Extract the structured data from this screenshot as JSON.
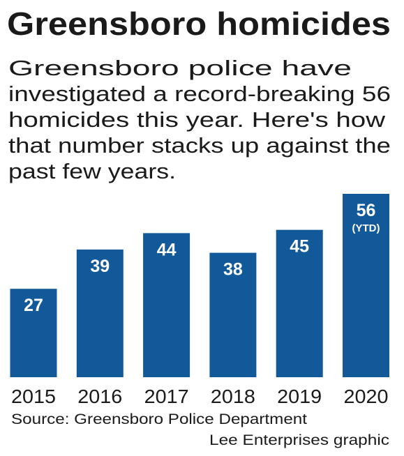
{
  "chart_data": {
    "type": "bar",
    "title": "Greensboro homicides",
    "subtitle": [
      "Greensboro police have",
      "investigated a record-breaking 56",
      "homicides this year. Here's how",
      "that number stacks up against the",
      "past few years."
    ],
    "categories": [
      "2015",
      "2016",
      "2017",
      "2018",
      "2019",
      "2020"
    ],
    "values": [
      27,
      39,
      44,
      38,
      45,
      56
    ],
    "color": "#12599a",
    "annotation": "(YTD)",
    "source": "Source: Greensboro Police Department",
    "credit": "Lee Enterprises graphic"
  }
}
